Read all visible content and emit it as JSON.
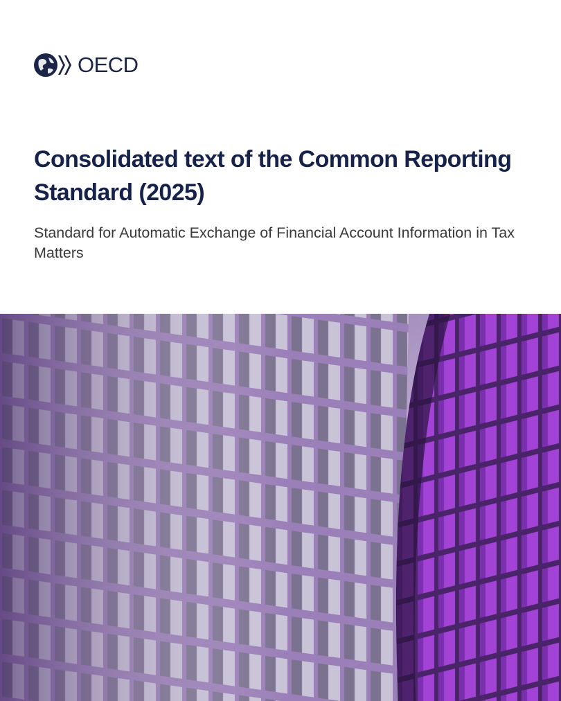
{
  "logo": {
    "text": "OECD"
  },
  "title": "Consolidated text of the Common Reporting Standard (2025)",
  "subtitle": "Standard for Automatic Exchange of Financial Account Information in Tax Matters"
}
